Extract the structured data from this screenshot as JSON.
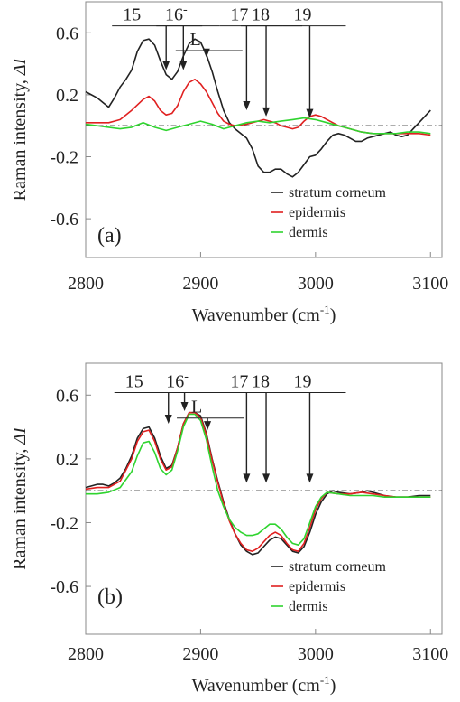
{
  "chart_data": [
    {
      "type": "line",
      "panel_label": "(a)",
      "xlabel": "Wavenumber (cm",
      "xlabel_sup": "-1",
      "xlabel_close": ")",
      "ylabel": "Raman intensity, ",
      "ylabel_italic": "ΔI",
      "xlim": [
        2800,
        3110
      ],
      "ylim": [
        -0.85,
        0.8
      ],
      "xticks": [
        2800,
        2900,
        3000,
        3100
      ],
      "yticks": [
        0.6,
        0.2,
        -0.2,
        -0.6
      ],
      "xtick_labels": [
        "2800",
        "2900",
        "3000",
        "3100"
      ],
      "ytick_labels": [
        "0.6",
        "0.2",
        "-0.2",
        "-0.6"
      ],
      "zero_line": true,
      "grid": false,
      "legend_position": "bottom-right",
      "peak_labels": [
        {
          "text": "15",
          "x": 2870,
          "y_label": 0.68
        },
        {
          "text": "16",
          "sup": "-",
          "x": 2885,
          "y_label": 0.68
        },
        {
          "text": "L",
          "x": 2905,
          "y_label": 0.52
        },
        {
          "text": "17",
          "x": 2940,
          "y_label": 0.68
        },
        {
          "text": "18",
          "x": 2957,
          "y_label": 0.68
        },
        {
          "text": "19",
          "x": 2995,
          "y_label": 0.68
        }
      ],
      "series": [
        {
          "name": "stratum corneum",
          "color": "#222222",
          "x": [
            2800,
            2810,
            2815,
            2820,
            2825,
            2830,
            2835,
            2840,
            2845,
            2850,
            2855,
            2860,
            2865,
            2870,
            2875,
            2880,
            2885,
            2890,
            2895,
            2900,
            2905,
            2910,
            2915,
            2920,
            2925,
            2930,
            2935,
            2940,
            2945,
            2950,
            2955,
            2960,
            2965,
            2970,
            2975,
            2980,
            2985,
            2990,
            2995,
            3000,
            3005,
            3010,
            3015,
            3020,
            3025,
            3030,
            3035,
            3040,
            3045,
            3050,
            3055,
            3060,
            3065,
            3070,
            3075,
            3080,
            3085,
            3090,
            3095,
            3100
          ],
          "y": [
            0.22,
            0.18,
            0.15,
            0.12,
            0.18,
            0.25,
            0.3,
            0.36,
            0.48,
            0.55,
            0.56,
            0.52,
            0.42,
            0.33,
            0.3,
            0.35,
            0.45,
            0.53,
            0.56,
            0.54,
            0.46,
            0.35,
            0.22,
            0.1,
            0.02,
            -0.02,
            -0.05,
            -0.08,
            -0.15,
            -0.26,
            -0.3,
            -0.3,
            -0.28,
            -0.28,
            -0.31,
            -0.33,
            -0.3,
            -0.25,
            -0.2,
            -0.19,
            -0.15,
            -0.1,
            -0.06,
            -0.05,
            -0.06,
            -0.08,
            -0.1,
            -0.1,
            -0.08,
            -0.07,
            -0.06,
            -0.05,
            -0.04,
            -0.06,
            -0.07,
            -0.06,
            -0.02,
            0.02,
            0.06,
            0.1
          ]
        },
        {
          "name": "epidermis",
          "color": "#e02020",
          "x": [
            2800,
            2810,
            2820,
            2830,
            2840,
            2850,
            2855,
            2860,
            2865,
            2870,
            2875,
            2880,
            2885,
            2890,
            2895,
            2900,
            2905,
            2910,
            2915,
            2920,
            2925,
            2930,
            2940,
            2950,
            2955,
            2960,
            2965,
            2970,
            2975,
            2980,
            2985,
            2990,
            2995,
            3000,
            3005,
            3010,
            3020,
            3030,
            3040,
            3050,
            3060,
            3070,
            3080,
            3090,
            3100
          ],
          "y": [
            0.02,
            0.02,
            0.02,
            0.04,
            0.1,
            0.17,
            0.19,
            0.16,
            0.1,
            0.07,
            0.08,
            0.13,
            0.22,
            0.28,
            0.3,
            0.27,
            0.22,
            0.15,
            0.08,
            0.03,
            0.01,
            0.0,
            0.01,
            0.03,
            0.04,
            0.03,
            0.02,
            0.0,
            -0.01,
            -0.02,
            -0.01,
            0.03,
            0.06,
            0.07,
            0.06,
            0.04,
            0.0,
            -0.02,
            -0.04,
            -0.05,
            -0.05,
            -0.05,
            -0.05,
            -0.05,
            -0.06
          ]
        },
        {
          "name": "dermis",
          "color": "#2fd42f",
          "x": [
            2800,
            2810,
            2820,
            2830,
            2840,
            2850,
            2860,
            2870,
            2880,
            2890,
            2900,
            2910,
            2920,
            2930,
            2940,
            2950,
            2960,
            2970,
            2980,
            2990,
            3000,
            3010,
            3020,
            3030,
            3040,
            3050,
            3060,
            3070,
            3080,
            3090,
            3100
          ],
          "y": [
            0.01,
            0.0,
            -0.01,
            -0.02,
            -0.01,
            0.02,
            -0.01,
            -0.03,
            -0.01,
            0.01,
            0.03,
            0.01,
            -0.02,
            0.0,
            0.02,
            0.03,
            0.02,
            0.03,
            0.04,
            0.05,
            0.04,
            0.02,
            0.0,
            -0.02,
            -0.04,
            -0.05,
            -0.05,
            -0.05,
            -0.04,
            -0.04,
            -0.05
          ]
        }
      ]
    },
    {
      "type": "line",
      "panel_label": "(b)",
      "xlabel": "Wavenumber (cm",
      "xlabel_sup": "-1",
      "xlabel_close": ")",
      "ylabel": "Raman intensity, ",
      "ylabel_italic": "ΔI",
      "xlim": [
        2800,
        3110
      ],
      "ylim": [
        -0.9,
        0.8
      ],
      "xticks": [
        2800,
        2900,
        3000,
        3100
      ],
      "yticks": [
        0.6,
        0.2,
        -0.2,
        -0.6
      ],
      "xtick_labels": [
        "2800",
        "2900",
        "3000",
        "3100"
      ],
      "ytick_labels": [
        "0.6",
        "0.2",
        "-0.2",
        "-0.6"
      ],
      "zero_line": true,
      "grid": false,
      "legend_position": "bottom-right",
      "peak_labels": [
        {
          "text": "15",
          "x": 2872,
          "y_label": 0.65
        },
        {
          "text": "16",
          "sup": "-",
          "x": 2886,
          "y_label": 0.65
        },
        {
          "text": "L",
          "x": 2906,
          "y_label": 0.49
        },
        {
          "text": "17",
          "x": 2940,
          "y_label": 0.65
        },
        {
          "text": "18",
          "x": 2957,
          "y_label": 0.65
        },
        {
          "text": "19",
          "x": 2995,
          "y_label": 0.65
        }
      ],
      "series": [
        {
          "name": "stratum corneum",
          "color": "#222222",
          "x": [
            2800,
            2810,
            2815,
            2820,
            2825,
            2830,
            2835,
            2840,
            2845,
            2850,
            2855,
            2860,
            2865,
            2870,
            2875,
            2880,
            2885,
            2890,
            2895,
            2900,
            2905,
            2910,
            2915,
            2920,
            2925,
            2930,
            2935,
            2940,
            2945,
            2950,
            2955,
            2960,
            2965,
            2970,
            2975,
            2980,
            2985,
            2990,
            2995,
            3000,
            3005,
            3010,
            3015,
            3020,
            3030,
            3040,
            3045,
            3050,
            3060,
            3070,
            3080,
            3090,
            3100
          ],
          "y": [
            0.02,
            0.04,
            0.04,
            0.03,
            0.05,
            0.08,
            0.14,
            0.22,
            0.33,
            0.39,
            0.4,
            0.33,
            0.22,
            0.14,
            0.16,
            0.27,
            0.42,
            0.49,
            0.49,
            0.47,
            0.36,
            0.2,
            0.06,
            -0.07,
            -0.18,
            -0.27,
            -0.34,
            -0.38,
            -0.4,
            -0.39,
            -0.35,
            -0.31,
            -0.29,
            -0.3,
            -0.34,
            -0.38,
            -0.39,
            -0.35,
            -0.26,
            -0.15,
            -0.07,
            -0.02,
            0.0,
            -0.01,
            -0.02,
            -0.01,
            0.0,
            -0.01,
            -0.03,
            -0.04,
            -0.04,
            -0.03,
            -0.03
          ]
        },
        {
          "name": "epidermis",
          "color": "#e02020",
          "x": [
            2800,
            2810,
            2820,
            2830,
            2840,
            2845,
            2850,
            2855,
            2860,
            2865,
            2870,
            2875,
            2880,
            2885,
            2890,
            2895,
            2900,
            2905,
            2910,
            2915,
            2920,
            2925,
            2930,
            2935,
            2940,
            2945,
            2950,
            2955,
            2960,
            2965,
            2970,
            2975,
            2980,
            2985,
            2990,
            2995,
            3000,
            3005,
            3010,
            3020,
            3030,
            3040,
            3050,
            3060,
            3070,
            3080,
            3090,
            3100
          ],
          "y": [
            0.01,
            0.02,
            0.02,
            0.06,
            0.2,
            0.31,
            0.37,
            0.38,
            0.31,
            0.2,
            0.13,
            0.15,
            0.27,
            0.42,
            0.49,
            0.49,
            0.46,
            0.35,
            0.19,
            0.05,
            -0.08,
            -0.19,
            -0.27,
            -0.33,
            -0.37,
            -0.38,
            -0.36,
            -0.32,
            -0.28,
            -0.26,
            -0.28,
            -0.33,
            -0.37,
            -0.38,
            -0.33,
            -0.23,
            -0.12,
            -0.05,
            -0.01,
            -0.02,
            -0.02,
            -0.01,
            -0.02,
            -0.03,
            -0.04,
            -0.04,
            -0.04,
            -0.04
          ]
        },
        {
          "name": "dermis",
          "color": "#2fd42f",
          "x": [
            2800,
            2810,
            2820,
            2830,
            2840,
            2845,
            2850,
            2855,
            2860,
            2865,
            2870,
            2875,
            2880,
            2885,
            2890,
            2895,
            2900,
            2905,
            2910,
            2915,
            2920,
            2925,
            2930,
            2935,
            2940,
            2945,
            2950,
            2955,
            2960,
            2965,
            2970,
            2975,
            2980,
            2985,
            2990,
            2995,
            3000,
            3005,
            3010,
            3020,
            3030,
            3040,
            3050,
            3060,
            3070,
            3080,
            3090,
            3100
          ],
          "y": [
            -0.02,
            -0.02,
            -0.01,
            0.02,
            0.12,
            0.22,
            0.3,
            0.31,
            0.24,
            0.14,
            0.1,
            0.13,
            0.25,
            0.4,
            0.48,
            0.48,
            0.44,
            0.32,
            0.15,
            0.0,
            -0.1,
            -0.18,
            -0.23,
            -0.26,
            -0.28,
            -0.28,
            -0.27,
            -0.24,
            -0.21,
            -0.21,
            -0.24,
            -0.29,
            -0.33,
            -0.34,
            -0.3,
            -0.2,
            -0.1,
            -0.04,
            -0.01,
            -0.02,
            -0.03,
            -0.03,
            -0.03,
            -0.04,
            -0.04,
            -0.04,
            -0.04,
            -0.04
          ]
        }
      ]
    }
  ]
}
